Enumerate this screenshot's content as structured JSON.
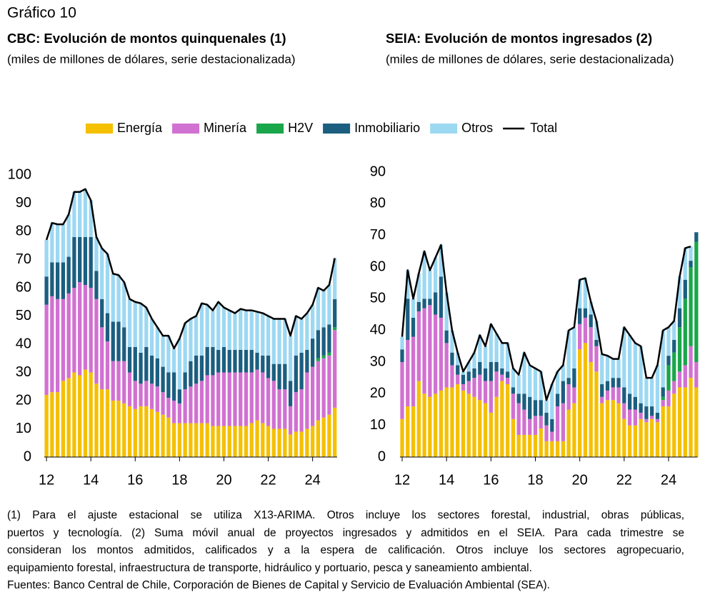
{
  "header": "Gráfico 10",
  "chart_data": [
    {
      "type": "bar",
      "stacked": true,
      "title": "CBC: Evolución de montos quinquenales (1)",
      "subtitle": "(miles de millones de dólares, serie destacionalizada)",
      "x": [
        12,
        12.25,
        12.5,
        12.75,
        13,
        13.25,
        13.5,
        13.75,
        14,
        14.25,
        14.5,
        14.75,
        15,
        15.25,
        15.5,
        15.75,
        16,
        16.25,
        16.5,
        16.75,
        17,
        17.25,
        17.5,
        17.75,
        18,
        18.25,
        18.5,
        18.75,
        19,
        19.25,
        19.5,
        19.75,
        20,
        20.25,
        20.5,
        20.75,
        21,
        21.25,
        21.5,
        21.75,
        22,
        22.25,
        22.5,
        22.75,
        23,
        23.25,
        23.5,
        23.75,
        24,
        24.25,
        24.5,
        24.75,
        25
      ],
      "series": [
        {
          "name": "Energía",
          "color": "#f5c000",
          "values": [
            22,
            23,
            23,
            27,
            28,
            30,
            29,
            31,
            30,
            26,
            24,
            24,
            20,
            20,
            19,
            18,
            17,
            18,
            18,
            17,
            16,
            15,
            14,
            12,
            12,
            12,
            12,
            12,
            12,
            12,
            11,
            11,
            11,
            11,
            11,
            11,
            11,
            12,
            13,
            12,
            11,
            10,
            10,
            10,
            8,
            9,
            9,
            10,
            11,
            13,
            14,
            15,
            17.5
          ]
        },
        {
          "name": "Minería",
          "color": "#d171d1",
          "values": [
            32,
            34,
            33,
            29,
            30,
            30,
            33,
            30,
            30,
            30,
            22,
            17,
            14,
            14,
            15,
            12,
            10,
            8,
            9,
            9,
            9,
            8,
            7,
            8,
            7,
            12,
            13,
            14,
            15,
            17,
            18,
            19,
            19,
            19,
            19,
            19,
            19,
            18,
            18,
            18,
            17,
            17,
            14,
            14,
            10,
            14,
            15,
            20,
            21,
            21,
            21,
            21,
            27.5
          ]
        },
        {
          "name": "H2V",
          "color": "#1aa64a",
          "values": [
            0,
            0,
            0,
            0,
            0,
            0,
            0,
            0,
            0,
            0,
            0,
            0,
            0,
            0,
            0,
            0,
            0,
            0,
            0,
            0,
            0,
            0,
            0,
            0,
            0,
            0,
            0,
            0,
            0,
            0,
            0,
            0,
            0,
            0,
            0,
            0,
            0,
            0,
            0,
            0,
            0,
            0,
            0,
            0,
            0,
            0,
            0,
            0,
            0,
            1,
            1,
            1,
            1
          ]
        },
        {
          "name": "Inmobiliario",
          "color": "#1b5e80",
          "values": [
            10,
            12,
            13,
            13,
            13,
            18,
            16,
            17,
            18,
            10,
            10,
            10,
            14,
            14,
            12,
            9,
            12,
            11,
            12,
            10,
            10,
            9,
            9,
            10,
            5,
            6,
            9,
            10,
            9,
            10,
            10,
            8,
            9,
            8,
            8,
            8,
            8,
            8,
            6,
            6,
            8,
            6,
            9,
            9,
            9,
            13,
            13,
            8,
            10,
            10,
            10,
            10,
            10
          ]
        },
        {
          "name": "Otros",
          "color": "#9dd8f2",
          "values": [
            13,
            14,
            13.5,
            13.5,
            15,
            16,
            16,
            17,
            13,
            12,
            18,
            21,
            17,
            16.5,
            16,
            17,
            16,
            17.5,
            14,
            13,
            11,
            11,
            13,
            8.5,
            18,
            17.5,
            15,
            14,
            18.5,
            15,
            13,
            17,
            14,
            14,
            13,
            14.5,
            14,
            14,
            14.5,
            15,
            14,
            16,
            16,
            16,
            16,
            14,
            12,
            13,
            12,
            15,
            13,
            14,
            14.5
          ]
        }
      ],
      "total": {
        "name": "Total",
        "color": "#000000",
        "values": [
          77,
          83,
          82.5,
          82.5,
          86,
          94,
          94,
          95,
          91,
          78,
          74,
          72,
          65,
          64.5,
          62,
          56,
          55,
          54.5,
          53,
          49,
          46,
          43,
          43,
          38.5,
          42,
          47.5,
          49,
          50,
          54.5,
          54,
          52,
          55,
          53,
          52,
          51,
          52.5,
          52,
          52,
          51.5,
          51,
          50,
          49,
          49,
          49,
          43,
          50,
          49,
          51,
          54,
          60,
          59,
          61,
          70.5
        ]
      },
      "xlim": [
        11.9,
        25.3
      ],
      "xticks": [
        12,
        14,
        16,
        18,
        20,
        22,
        24
      ],
      "ylim": [
        0,
        100
      ],
      "yticks": [
        0,
        10,
        20,
        30,
        40,
        50,
        60,
        70,
        80,
        90,
        100
      ]
    },
    {
      "type": "bar",
      "stacked": true,
      "title": "SEIA: Evolución de montos ingresados (2)",
      "subtitle": "(miles de millones de dólares, serie destacionalizada)",
      "x": [
        12,
        12.25,
        12.5,
        12.75,
        13,
        13.25,
        13.5,
        13.75,
        14,
        14.25,
        14.5,
        14.75,
        15,
        15.25,
        15.5,
        15.75,
        16,
        16.25,
        16.5,
        16.75,
        17,
        17.25,
        17.5,
        17.75,
        18,
        18.25,
        18.5,
        18.75,
        19,
        19.25,
        19.5,
        19.75,
        20,
        20.25,
        20.5,
        20.75,
        21,
        21.25,
        21.5,
        21.75,
        22,
        22.25,
        22.5,
        22.75,
        23,
        23.25,
        23.5,
        23.75,
        24,
        24.25,
        24.5,
        24.75,
        25,
        25.25
      ],
      "series": [
        {
          "name": "Energía",
          "color": "#f5c000",
          "values": [
            12,
            16,
            16,
            24,
            20,
            19,
            20,
            21,
            22,
            22,
            23,
            21,
            20,
            19,
            18,
            17,
            14,
            19,
            24,
            23,
            12,
            7,
            7,
            7,
            7,
            9,
            5,
            5,
            5,
            5,
            15,
            17,
            34,
            36,
            30,
            27,
            17,
            18,
            18,
            17,
            12,
            10,
            10,
            12,
            11,
            12,
            11,
            16,
            16,
            20,
            22,
            22,
            25,
            22
          ]
        },
        {
          "name": "Minería",
          "color": "#d171d1",
          "values": [
            18,
            21,
            22,
            22,
            27,
            29,
            25,
            23,
            14,
            7,
            3,
            2,
            4,
            6,
            8,
            7,
            10,
            8,
            2,
            2,
            8,
            10,
            8,
            5,
            6,
            4,
            5,
            3,
            11,
            12,
            8,
            5,
            8,
            8,
            11,
            8,
            2,
            3,
            4,
            5,
            5,
            5,
            5,
            2,
            1,
            1,
            1,
            2,
            5,
            4,
            5,
            7,
            10,
            8
          ]
        },
        {
          "name": "H2V",
          "color": "#1aa64a",
          "values": [
            0,
            0,
            0,
            0,
            0,
            0,
            0,
            0,
            0,
            0,
            0,
            0,
            0,
            0,
            0,
            0,
            0,
            0,
            0,
            0,
            0,
            0,
            0,
            0,
            0,
            0,
            0,
            0,
            0,
            0,
            0,
            0,
            0,
            0,
            0,
            0,
            0,
            0,
            0,
            0,
            0,
            0,
            0,
            0,
            0,
            0,
            0,
            1,
            8,
            9,
            14,
            21,
            25,
            38
          ]
        },
        {
          "name": "Inmobiliario",
          "color": "#1b5e80",
          "values": [
            4,
            13,
            6,
            3,
            3,
            2,
            7,
            13,
            4,
            4,
            3,
            3,
            3,
            3,
            4,
            4,
            6,
            3,
            2,
            2,
            2,
            3,
            5,
            7,
            5,
            5,
            4,
            4,
            4,
            7,
            2,
            6,
            5,
            3,
            4,
            2,
            4,
            3,
            3,
            3,
            5,
            5,
            4,
            3,
            4,
            3,
            2,
            3,
            3,
            4,
            6,
            6,
            2,
            3
          ]
        },
        {
          "name": "Otros",
          "color": "#9dd8f2",
          "values": [
            4,
            9,
            6,
            9,
            15,
            9,
            11,
            10,
            12,
            7,
            4,
            1,
            3,
            5,
            8.5,
            7,
            12,
            9,
            8,
            9,
            6,
            6,
            13,
            10,
            10,
            9,
            4,
            11,
            7,
            5,
            15,
            13,
            9,
            9.5,
            4,
            6,
            9.5,
            8,
            6,
            6,
            19,
            18.5,
            17,
            18,
            9,
            9,
            15,
            18,
            9,
            6,
            10,
            10,
            4.5,
            0
          ]
        }
      ],
      "total": {
        "name": "Total",
        "color": "#000000",
        "values": [
          38,
          59,
          50,
          58,
          65,
          59,
          63,
          67,
          52,
          40,
          33,
          27,
          30,
          33,
          38.5,
          35,
          42,
          39,
          36,
          36,
          28,
          26,
          33,
          29,
          28,
          27,
          18,
          23,
          27,
          29,
          40,
          41,
          56,
          56.5,
          49,
          43,
          32.5,
          32,
          31,
          31,
          41,
          38.5,
          36,
          35,
          25,
          25,
          29,
          40,
          41,
          43,
          57,
          66,
          66.5,
          null
        ]
      },
      "xlim": [
        11.9,
        25.5
      ],
      "xticks": [
        12,
        14,
        16,
        18,
        20,
        22,
        24
      ],
      "ylim": [
        0,
        90
      ],
      "yticks": [
        0,
        10,
        20,
        30,
        40,
        50,
        60,
        70,
        80,
        90
      ]
    }
  ],
  "notes": [
    "(1) Para el ajuste estacional se utiliza X13-ARIMA. Otros incluye los sectores forestal, industrial, obras públicas,",
    "puertos y tecnología. (2) Suma móvil anual de proyectos ingresados y admitidos en el SEIA. Para cada trimestre se",
    "consideran los montos admitidos, calificados y a la espera de calificación. Otros incluye los sectores agropecuario,",
    "equipamiento forestal, infraestructura de transporte, hidráulico y portuario, pesca y saneamiento ambiental.",
    "Fuentes: Banco Central de Chile, Corporación de Bienes de Capital y Servicio de Evaluación Ambiental (SEA)."
  ]
}
